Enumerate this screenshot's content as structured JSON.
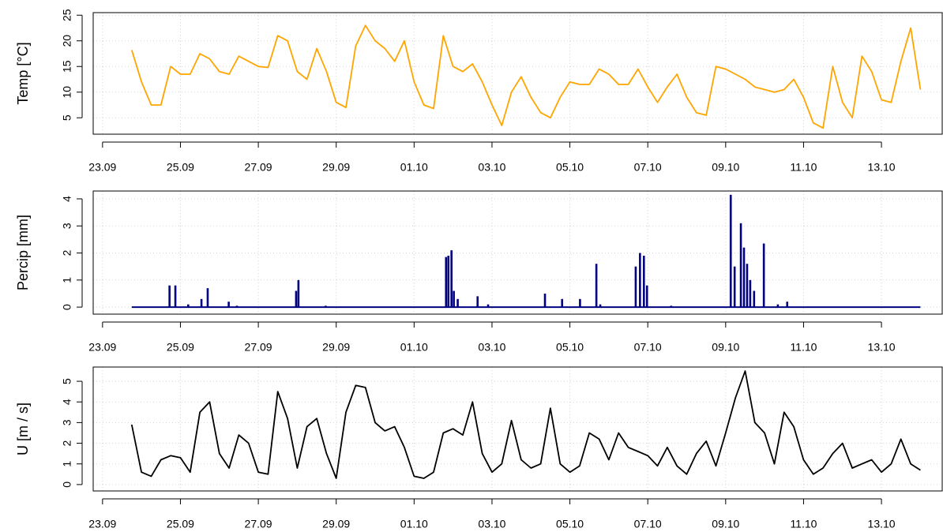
{
  "chart_data": [
    {
      "type": "line",
      "ylabel": "Temp [°C]",
      "color": "#FFA500",
      "grid": true,
      "xlim": [
        -0.24,
        21.56
      ],
      "ylim": [
        1.8,
        25.5
      ],
      "yticks": [
        5,
        10,
        15,
        20,
        25
      ],
      "xticks": [
        {
          "value": 0,
          "label": "23.09"
        },
        {
          "value": 2,
          "label": "25.09"
        },
        {
          "value": 4,
          "label": "27.09"
        },
        {
          "value": 6,
          "label": "29.09"
        },
        {
          "value": 8,
          "label": "01.10"
        },
        {
          "value": 10,
          "label": "03.10"
        },
        {
          "value": 12,
          "label": "05.10"
        },
        {
          "value": 14,
          "label": "07.10"
        },
        {
          "value": 16,
          "label": "09.10"
        },
        {
          "value": 18,
          "label": "11.10"
        },
        {
          "value": 20,
          "label": "13.10"
        }
      ],
      "x": [
        0.75,
        1,
        1.25,
        1.5,
        1.75,
        2,
        2.25,
        2.5,
        2.75,
        3,
        3.25,
        3.5,
        3.75,
        4,
        4.25,
        4.5,
        4.75,
        5,
        5.25,
        5.5,
        5.75,
        6,
        6.25,
        6.5,
        6.75,
        7,
        7.25,
        7.5,
        7.75,
        8,
        8.25,
        8.5,
        8.75,
        9,
        9.25,
        9.5,
        9.75,
        10,
        10.25,
        10.5,
        10.75,
        11,
        11.25,
        11.5,
        11.75,
        12,
        12.25,
        12.5,
        12.75,
        13,
        13.25,
        13.5,
        13.75,
        14,
        14.25,
        14.5,
        14.75,
        15,
        15.25,
        15.5,
        15.75,
        16,
        16.25,
        16.5,
        16.75,
        17,
        17.25,
        17.5,
        17.75,
        18,
        18.25,
        18.5,
        18.75,
        19,
        19.25,
        19.5,
        19.75,
        20,
        20.25,
        20.5,
        20.75,
        21
      ],
      "values": [
        18.2,
        12,
        7.5,
        7.5,
        15,
        13.5,
        13.5,
        17.5,
        16.5,
        14,
        13.5,
        17,
        16,
        15,
        14.8,
        21,
        20,
        14,
        12.5,
        18.5,
        14,
        8,
        7,
        19,
        23,
        20,
        18.5,
        16,
        20,
        12,
        7.5,
        6.8,
        21,
        15,
        14,
        15.5,
        12,
        7.5,
        3.5,
        10,
        13,
        9,
        6,
        5,
        9,
        12,
        11.5,
        11.5,
        14.5,
        13.5,
        11.5,
        11.5,
        14.5,
        11,
        8,
        11,
        13.5,
        9,
        6,
        5.5,
        15,
        14.5,
        13.5,
        12.5,
        11,
        10.5,
        10,
        10.5,
        12.5,
        9,
        4,
        3,
        15,
        8,
        5,
        17,
        14,
        8.5,
        8,
        16,
        22.5,
        10.5
      ]
    },
    {
      "type": "bar",
      "ylabel": "Percip [mm]",
      "color": "#000080",
      "grid": true,
      "xlim": [
        -0.24,
        21.56
      ],
      "ylim": [
        -0.26,
        4.29
      ],
      "yticks": [
        0,
        1,
        2,
        3,
        4
      ],
      "xticks": [
        {
          "value": 0,
          "label": "23.09"
        },
        {
          "value": 2,
          "label": "25.09"
        },
        {
          "value": 4,
          "label": "27.09"
        },
        {
          "value": 6,
          "label": "29.09"
        },
        {
          "value": 8,
          "label": "01.10"
        },
        {
          "value": 10,
          "label": "03.10"
        },
        {
          "value": 12,
          "label": "05.10"
        },
        {
          "value": 14,
          "label": "07.10"
        },
        {
          "value": 16,
          "label": "09.10"
        },
        {
          "value": 18,
          "label": "11.10"
        },
        {
          "value": 20,
          "label": "13.10"
        }
      ],
      "x": [
        0.75,
        1.72,
        1.87,
        2.2,
        2.54,
        2.7,
        3.24,
        3.45,
        4.97,
        5.03,
        5.73,
        8.82,
        8.88,
        8.96,
        9.02,
        9.12,
        9.63,
        9.9,
        11.36,
        11.8,
        12.26,
        12.68,
        12.78,
        13.69,
        13.8,
        13.9,
        13.98,
        14.6,
        16.13,
        16.23,
        16.39,
        16.47,
        16.55,
        16.63,
        16.73,
        16.98,
        17.34,
        17.58,
        21
      ],
      "values": [
        0,
        0.8,
        0.8,
        0.1,
        0.3,
        0.7,
        0.2,
        0.05,
        0.6,
        1.0,
        0.05,
        1.85,
        1.9,
        2.1,
        0.6,
        0.3,
        0.4,
        0.1,
        0.5,
        0.3,
        0.3,
        1.6,
        0.1,
        1.5,
        2.0,
        1.9,
        0.8,
        0.05,
        4.15,
        1.5,
        3.1,
        2.2,
        1.6,
        1.0,
        0.6,
        2.35,
        0.1,
        0.2,
        0
      ]
    },
    {
      "type": "line",
      "ylabel": "U [m / s]",
      "color": "#000000",
      "grid": true,
      "xlim": [
        -0.24,
        21.56
      ],
      "ylim": [
        -0.31,
        5.69
      ],
      "yticks": [
        0,
        1,
        2,
        3,
        4,
        5
      ],
      "xticks": [
        {
          "value": 0,
          "label": "23.09"
        },
        {
          "value": 2,
          "label": "25.09"
        },
        {
          "value": 4,
          "label": "27.09"
        },
        {
          "value": 6,
          "label": "29.09"
        },
        {
          "value": 8,
          "label": "01.10"
        },
        {
          "value": 10,
          "label": "03.10"
        },
        {
          "value": 12,
          "label": "05.10"
        },
        {
          "value": 14,
          "label": "07.10"
        },
        {
          "value": 16,
          "label": "09.10"
        },
        {
          "value": 18,
          "label": "11.10"
        },
        {
          "value": 20,
          "label": "13.10"
        }
      ],
      "x": [
        0.75,
        1,
        1.25,
        1.5,
        1.75,
        2,
        2.25,
        2.5,
        2.75,
        3,
        3.25,
        3.5,
        3.75,
        4,
        4.25,
        4.5,
        4.75,
        5,
        5.25,
        5.5,
        5.75,
        6,
        6.25,
        6.5,
        6.75,
        7,
        7.25,
        7.5,
        7.75,
        8,
        8.25,
        8.5,
        8.75,
        9,
        9.25,
        9.5,
        9.75,
        10,
        10.25,
        10.5,
        10.75,
        11,
        11.25,
        11.5,
        11.75,
        12,
        12.25,
        12.5,
        12.75,
        13,
        13.25,
        13.5,
        13.75,
        14,
        14.25,
        14.5,
        14.75,
        15,
        15.25,
        15.5,
        15.75,
        16,
        16.25,
        16.5,
        16.75,
        17,
        17.25,
        17.5,
        17.75,
        18,
        18.25,
        18.5,
        18.75,
        19,
        19.25,
        19.5,
        19.75,
        20,
        20.25,
        20.5,
        20.75,
        21
      ],
      "values": [
        2.9,
        0.6,
        0.4,
        1.2,
        1.4,
        1.3,
        0.6,
        3.5,
        4.0,
        1.5,
        0.8,
        2.4,
        2.0,
        0.6,
        0.5,
        4.5,
        3.2,
        0.8,
        2.8,
        3.2,
        1.5,
        0.3,
        3.5,
        4.8,
        4.7,
        3.0,
        2.6,
        2.8,
        1.8,
        0.4,
        0.3,
        0.6,
        2.5,
        2.7,
        2.4,
        4.0,
        1.5,
        0.6,
        1.0,
        3.1,
        1.2,
        0.8,
        1.0,
        3.7,
        1.0,
        0.6,
        0.9,
        2.5,
        2.2,
        1.2,
        2.5,
        1.8,
        1.6,
        1.4,
        0.9,
        1.8,
        0.9,
        0.5,
        1.5,
        2.1,
        0.9,
        2.5,
        4.2,
        5.5,
        3.0,
        2.5,
        1.0,
        3.5,
        2.8,
        1.2,
        0.5,
        0.8,
        1.5,
        2.0,
        0.8,
        1.0,
        1.2,
        0.6,
        1.0,
        2.2,
        1.0,
        0.7
      ]
    }
  ]
}
